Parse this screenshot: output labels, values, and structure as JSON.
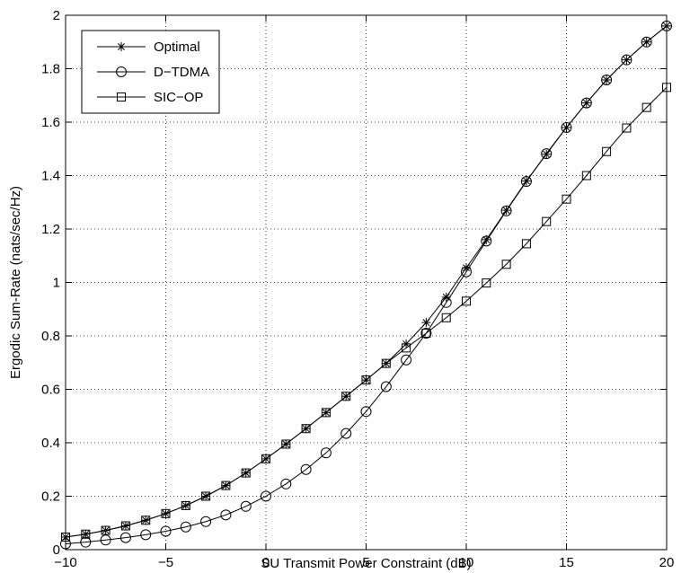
{
  "chart_data": {
    "type": "line",
    "xlabel": "SU Transmit Power Constraint (dB)",
    "ylabel": "Ergodic Sum-Rate (nats/sec/Hz)",
    "xlim": [
      -10,
      20
    ],
    "ylim": [
      0,
      2
    ],
    "xticks": [
      "−10",
      "−5",
      "0",
      "5",
      "10",
      "15",
      "20"
    ],
    "yticks": [
      "0",
      "0.2",
      "0.4",
      "0.6",
      "0.8",
      "1",
      "1.2",
      "1.4",
      "1.6",
      "1.8",
      "2"
    ],
    "grid": true,
    "grid_style": "dotted",
    "legend_position": "top-left",
    "x": [
      -10,
      -9,
      -8,
      -7,
      -6,
      -5,
      -4,
      -3,
      -2,
      -1,
      0,
      1,
      2,
      3,
      4,
      5,
      6,
      7,
      8,
      9,
      10,
      11,
      12,
      13,
      14,
      15,
      16,
      17,
      18,
      19,
      20
    ],
    "series": [
      {
        "name": "Optimal",
        "marker": "star",
        "color": "#000000",
        "values": [
          0.047,
          0.058,
          0.072,
          0.089,
          0.11,
          0.135,
          0.165,
          0.2,
          0.24,
          0.287,
          0.34,
          0.395,
          0.453,
          0.513,
          0.574,
          0.635,
          0.697,
          0.77,
          0.85,
          0.945,
          1.055,
          1.16,
          1.27,
          1.38,
          1.48,
          1.58,
          1.672,
          1.758,
          1.833,
          1.9,
          1.96
        ]
      },
      {
        "name": "D−TDMA",
        "marker": "circle",
        "color": "#000000",
        "values": [
          0.022,
          0.028,
          0.036,
          0.045,
          0.056,
          0.069,
          0.085,
          0.105,
          0.13,
          0.162,
          0.2,
          0.246,
          0.3,
          0.362,
          0.435,
          0.517,
          0.61,
          0.71,
          0.81,
          0.925,
          1.04,
          1.155,
          1.268,
          1.378,
          1.482,
          1.58,
          1.672,
          1.758,
          1.833,
          1.9,
          1.96
        ]
      },
      {
        "name": "SIC−OP",
        "marker": "square",
        "color": "#000000",
        "values": [
          0.047,
          0.058,
          0.072,
          0.089,
          0.11,
          0.135,
          0.165,
          0.2,
          0.24,
          0.287,
          0.34,
          0.395,
          0.453,
          0.513,
          0.574,
          0.635,
          0.697,
          0.755,
          0.81,
          0.868,
          0.93,
          0.998,
          1.068,
          1.145,
          1.228,
          1.312,
          1.4,
          1.49,
          1.578,
          1.655,
          1.73
        ]
      }
    ]
  }
}
